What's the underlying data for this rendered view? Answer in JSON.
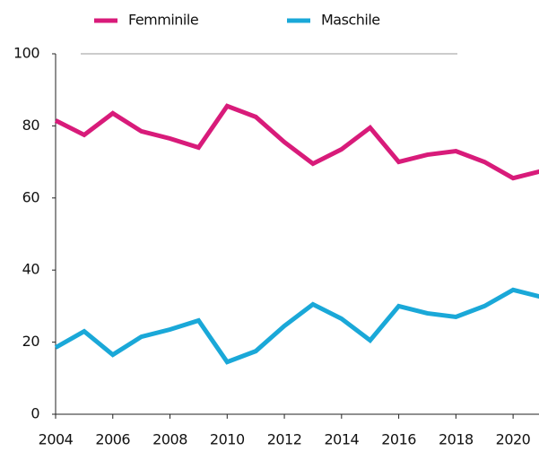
{
  "chart_data": {
    "type": "line",
    "x": [
      2004,
      2005,
      2006,
      2007,
      2008,
      2009,
      2010,
      2011,
      2012,
      2013,
      2014,
      2015,
      2016,
      2017,
      2018,
      2019,
      2020,
      2021
    ],
    "series": [
      {
        "name": "Femminile",
        "color": "#d81b7a",
        "values": [
          81.5,
          77.5,
          83.5,
          78.5,
          76.5,
          74,
          85.5,
          82.5,
          75.5,
          69.5,
          73.5,
          79.5,
          70,
          72,
          73,
          70,
          65.5,
          67.5
        ]
      },
      {
        "name": "Maschile",
        "color": "#1aa8d8",
        "values": [
          18.5,
          23,
          16.5,
          21.5,
          23.5,
          26,
          14.5,
          17.5,
          24.5,
          30.5,
          26.5,
          20.5,
          30,
          28,
          27,
          30,
          34.5,
          32.5
        ]
      }
    ],
    "xlim": [
      2004,
      2021
    ],
    "xticks": [
      2004,
      2006,
      2008,
      2010,
      2012,
      2014,
      2016,
      2018,
      2020
    ],
    "ylim": [
      0,
      100
    ],
    "yticks": [
      0,
      20,
      40,
      60,
      80,
      100
    ],
    "legend": "top"
  }
}
